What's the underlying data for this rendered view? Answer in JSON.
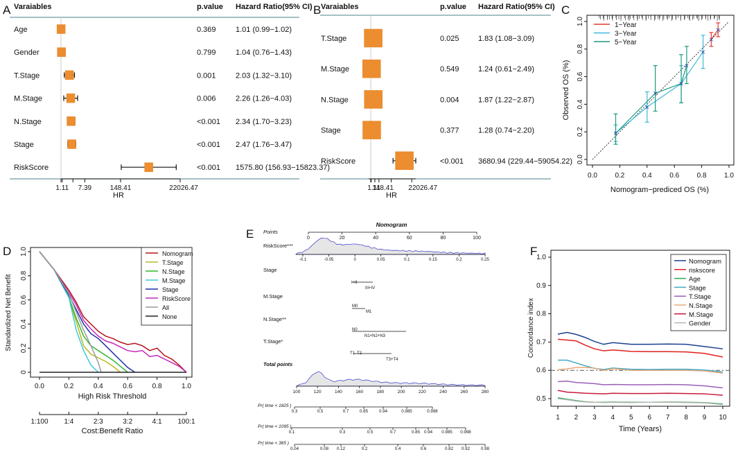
{
  "panels": {
    "A": {
      "letter": "A"
    },
    "B": {
      "letter": "B"
    },
    "C": {
      "letter": "C"
    },
    "D": {
      "letter": "D"
    },
    "E": {
      "letter": "E"
    },
    "F": {
      "letter": "F"
    }
  },
  "chart_data": [
    {
      "id": "A",
      "type": "forest",
      "headers": {
        "variable": "Varaiables",
        "p": "p.value",
        "hr": "Hazard Ratio(95% CI)"
      },
      "xlabel": "HR",
      "scale": "log",
      "xticks": [
        {
          "v": 1,
          "label": ""
        },
        {
          "v": 1.11,
          "label": "1.11"
        },
        {
          "v": 2.72,
          "label": ""
        },
        {
          "v": 7.39,
          "label": "7.39"
        },
        {
          "v": 148.41,
          "label": "148.41"
        },
        {
          "v": 22026.47,
          "label": "22026.47"
        }
      ],
      "rows": [
        {
          "name": "Age",
          "p": "0.369",
          "text": "1.01 (0.99−1.02)",
          "hr": 1.01,
          "lo": 0.99,
          "hi": 1.02
        },
        {
          "name": "Gender",
          "p": "0.799",
          "text": "1.04 (0.76−1.43)",
          "hr": 1.04,
          "lo": 0.76,
          "hi": 1.43
        },
        {
          "name": "T.Stage",
          "p": "0.001",
          "text": "2.03 (1.32−3.10)",
          "hr": 2.03,
          "lo": 1.32,
          "hi": 3.1
        },
        {
          "name": "M.Stage",
          "p": "0.006",
          "text": "2.26 (1.26−4.03)",
          "hr": 2.26,
          "lo": 1.26,
          "hi": 4.03
        },
        {
          "name": "N.Stage",
          "p": "<0.001",
          "text": "2.34 (1.70−3.23)",
          "hr": 2.34,
          "lo": 1.7,
          "hi": 3.23
        },
        {
          "name": "Stage",
          "p": "<0.001",
          "text": "2.47 (1.76−3.47)",
          "hr": 2.47,
          "lo": 1.76,
          "hi": 3.47
        },
        {
          "name": "RiskScore",
          "p": "<0.001",
          "text": "1575.80 (156.93−15823.37)",
          "hr": 1575.8,
          "lo": 156.93,
          "hi": 15823.37
        }
      ]
    },
    {
      "id": "B",
      "type": "forest",
      "headers": {
        "variable": "Varaiables",
        "p": "p.value",
        "hr": "Hazard Ratio(95% CI)"
      },
      "xlabel": "HR",
      "scale": "log",
      "xticks": [
        {
          "v": 1,
          "label": ""
        },
        {
          "v": 1.11,
          "label": "1.11"
        },
        {
          "v": 2.72,
          "label": ""
        },
        {
          "v": 7.39,
          "label": ""
        },
        {
          "v": 148.41,
          "label": "148.41"
        },
        {
          "v": 22026.47,
          "label": "22026.47"
        }
      ],
      "rows": [
        {
          "name": "T.Stage",
          "p": "0.025",
          "text": "1.83 (1.08−3.09)",
          "hr": 1.83,
          "lo": 1.08,
          "hi": 3.09
        },
        {
          "name": "M.Stage",
          "p": "0.549",
          "text": "1.24 (0.61−2.49)",
          "hr": 1.24,
          "lo": 0.61,
          "hi": 2.49
        },
        {
          "name": "N.Stage",
          "p": "0.004",
          "text": "1.87 (1.22−2.87)",
          "hr": 1.87,
          "lo": 1.22,
          "hi": 2.87
        },
        {
          "name": "Stage",
          "p": "0.377",
          "text": "1.28 (0.74−2.20)",
          "hr": 1.28,
          "lo": 0.74,
          "hi": 2.2
        },
        {
          "name": "RiskScore",
          "p": "<0.001",
          "text": "3680.94 (229.44−59054.22)",
          "hr": 3680.94,
          "lo": 229.44,
          "hi": 59054.22
        }
      ]
    },
    {
      "id": "C",
      "type": "line",
      "xlabel": "Nomogram−prediced OS (%)",
      "ylabel": "Observed OS (%)",
      "xlim": [
        0,
        1
      ],
      "ylim": [
        0,
        1
      ],
      "xticks": [
        "0.0",
        "0.2",
        "0.4",
        "0.6",
        "0.8",
        "1.0"
      ],
      "yticks": [
        "0.0",
        "0.2",
        "0.4",
        "0.6",
        "0.8",
        "1.0"
      ],
      "legend": "top-left",
      "series": [
        {
          "name": "1−Year",
          "color": "#e03a2f",
          "x": [
            0.87,
            0.92
          ],
          "y": [
            0.87,
            0.94
          ],
          "lo": [
            0.82,
            0.89
          ],
          "hi": [
            0.92,
            0.99
          ]
        },
        {
          "name": "3−Year",
          "color": "#3fb7d9",
          "x": [
            0.17,
            0.4,
            0.65,
            0.81
          ],
          "y": [
            0.19,
            0.38,
            0.55,
            0.78
          ],
          "lo": [
            0.13,
            0.27,
            0.41,
            0.66
          ],
          "hi": [
            0.25,
            0.49,
            0.68,
            0.9
          ]
        },
        {
          "name": "5−Year",
          "color": "#1a9a7e",
          "x": [
            0.17,
            0.46,
            0.65,
            0.69
          ],
          "y": [
            0.19,
            0.48,
            0.55,
            0.68
          ],
          "lo": [
            0.11,
            0.35,
            0.41,
            0.55
          ],
          "hi": [
            0.33,
            0.68,
            0.76,
            0.82
          ]
        }
      ]
    },
    {
      "id": "D",
      "type": "line",
      "subtype": "decision-curve",
      "xlabel": "High Risk Threshold",
      "ylabel": "Standardized Net Benefit",
      "x2label": "Cost:Benefit Ratio",
      "xlim": [
        0,
        1
      ],
      "ylim": [
        0,
        1
      ],
      "xticks": [
        "0.0",
        "0.2",
        "0.4",
        "0.6",
        "0.8",
        "1.0"
      ],
      "yticks": [
        "0",
        "0.2",
        "0.4",
        "0.6",
        "0.8",
        "1.0"
      ],
      "x2ticks": [
        "1:100",
        "1:4",
        "2:3",
        "3:2",
        "4:1",
        "100:1"
      ],
      "legend": "top-right",
      "series": [
        {
          "name": "Nomogram",
          "color": "#b5121b",
          "x": [
            0,
            0.1,
            0.2,
            0.25,
            0.3,
            0.35,
            0.4,
            0.45,
            0.5,
            0.55,
            0.6,
            0.65,
            0.7,
            0.75,
            0.8,
            0.85,
            0.9,
            0.95,
            1.0
          ],
          "y": [
            1.0,
            0.85,
            0.68,
            0.58,
            0.46,
            0.4,
            0.34,
            0.3,
            0.28,
            0.25,
            0.23,
            0.24,
            0.22,
            0.18,
            0.2,
            0.14,
            0.11,
            0.06,
            0.0
          ]
        },
        {
          "name": "T.Stage",
          "color": "#b7b81d",
          "x": [
            0,
            0.1,
            0.2,
            0.25,
            0.3,
            0.35,
            0.4,
            0.45,
            0.5,
            0.55
          ],
          "y": [
            1.0,
            0.85,
            0.62,
            0.42,
            0.22,
            0.15,
            0.12,
            0.09,
            0.05,
            0.0
          ]
        },
        {
          "name": "N.Stage",
          "color": "#2fb52f",
          "x": [
            0,
            0.1,
            0.2,
            0.25,
            0.3,
            0.35,
            0.4,
            0.45,
            0.5,
            0.55,
            0.6
          ],
          "y": [
            1.0,
            0.85,
            0.62,
            0.45,
            0.3,
            0.22,
            0.18,
            0.14,
            0.1,
            0.05,
            0.0
          ]
        },
        {
          "name": "M.Stage",
          "color": "#3fc8d8",
          "x": [
            0,
            0.1,
            0.2,
            0.25,
            0.3,
            0.35,
            0.4
          ],
          "y": [
            1.0,
            0.85,
            0.62,
            0.35,
            0.18,
            0.06,
            0.0
          ]
        },
        {
          "name": "Stage",
          "color": "#1a2fa6",
          "x": [
            0,
            0.1,
            0.2,
            0.25,
            0.3,
            0.35,
            0.4,
            0.45,
            0.5,
            0.55,
            0.6,
            0.65
          ],
          "y": [
            1.0,
            0.85,
            0.64,
            0.52,
            0.4,
            0.32,
            0.28,
            0.22,
            0.16,
            0.1,
            0.04,
            0.0
          ]
        },
        {
          "name": "RiskScore",
          "color": "#c22ab8",
          "x": [
            0,
            0.1,
            0.2,
            0.25,
            0.3,
            0.35,
            0.4,
            0.45,
            0.5,
            0.55,
            0.6,
            0.65,
            0.7,
            0.75,
            0.8,
            0.85,
            0.9,
            0.95,
            1.0
          ],
          "y": [
            1.0,
            0.85,
            0.66,
            0.56,
            0.43,
            0.36,
            0.3,
            0.26,
            0.24,
            0.21,
            0.18,
            0.17,
            0.18,
            0.13,
            0.14,
            0.11,
            0.08,
            0.05,
            0.0
          ]
        },
        {
          "name": "All",
          "color": "#9a9a9a",
          "x": [
            0,
            0.1,
            0.2,
            0.3,
            0.35,
            0.4,
            0.42
          ],
          "y": [
            1.0,
            0.85,
            0.65,
            0.35,
            0.22,
            0.08,
            0.0
          ]
        },
        {
          "name": "None",
          "color": "#222222",
          "x": [
            0,
            1
          ],
          "y": [
            0,
            0
          ]
        }
      ]
    },
    {
      "id": "E",
      "type": "nomogram",
      "title": "Nomogram",
      "points_label": "Points",
      "points_ticks": [
        "0",
        "20",
        "40",
        "60",
        "80",
        "100"
      ],
      "rows": [
        {
          "name": "RiskScore***",
          "ticks": [
            "-0.1",
            "-0.05",
            "0",
            "0.05",
            "0.1",
            "0.15",
            "0.2",
            "0.25"
          ]
        },
        {
          "name": "Stage",
          "labels": [
            "I+II",
            "III+IV"
          ]
        },
        {
          "name": "M.Stage",
          "labels": [
            "M0",
            "M1"
          ]
        },
        {
          "name": "N.Stage**",
          "labels": [
            "N0",
            "N1+N2+N3"
          ]
        },
        {
          "name": "T.Stage*",
          "labels": [
            "T1",
            "T2",
            "T3+T4"
          ]
        }
      ],
      "total_label": "Total points",
      "total_ticks": [
        "100",
        "120",
        "140",
        "160",
        "180",
        "200",
        "220",
        "240",
        "260",
        "280"
      ],
      "prob_rows": [
        {
          "name": "Pr( time < 1825 )",
          "ticks": [
            "0.3",
            "0.5",
            "0.7",
            "0.85",
            "0.94",
            "0.985",
            "0.998"
          ]
        },
        {
          "name": "Pr( time < 1095 )",
          "ticks": [
            "0.1",
            "0.3",
            "0.5",
            "0.7",
            "0.85",
            "0.94",
            "0.985",
            "0.998"
          ]
        },
        {
          "name": "Pr( time < 365 )",
          "ticks": [
            "0.04",
            "0.08",
            "0.12",
            "0.2",
            "0.4",
            "0.6",
            "0.82",
            "0.92",
            "0.98"
          ]
        }
      ]
    },
    {
      "id": "F",
      "type": "line",
      "xlabel": "Time (Years)",
      "ylabel": "Concordance index",
      "xlim": [
        1,
        10
      ],
      "ylim": [
        0.45,
        1.0
      ],
      "xticks": [
        "1",
        "2",
        "3",
        "4",
        "5",
        "6",
        "7",
        "8",
        "9",
        "10"
      ],
      "yticks": [
        "0.5",
        "0.6",
        "0.7",
        "0.8",
        "0.9",
        "1.0"
      ],
      "reference": 0.6,
      "legend": "top-right",
      "x": [
        1,
        1.5,
        2,
        2.5,
        3,
        3.5,
        4,
        5,
        6,
        7,
        8,
        9,
        10
      ],
      "series": [
        {
          "name": "Nomogram",
          "color": "#1a3f8f",
          "values": [
            0.728,
            0.734,
            0.727,
            0.716,
            0.702,
            0.692,
            0.698,
            0.692,
            0.692,
            0.693,
            0.692,
            0.684,
            0.676
          ]
        },
        {
          "name": "riskscore",
          "color": "#e01f1f",
          "values": [
            0.71,
            0.707,
            0.704,
            0.689,
            0.676,
            0.669,
            0.672,
            0.667,
            0.666,
            0.666,
            0.665,
            0.66,
            0.647
          ]
        },
        {
          "name": "Age",
          "color": "#2fa84f",
          "values": [
            0.503,
            0.498,
            0.493,
            0.489,
            0.487,
            0.487,
            0.488,
            0.487,
            0.487,
            0.488,
            0.487,
            0.486,
            0.481
          ]
        },
        {
          "name": "Stage",
          "color": "#3fa8c8",
          "values": [
            0.636,
            0.636,
            0.626,
            0.616,
            0.607,
            0.603,
            0.608,
            0.604,
            0.603,
            0.604,
            0.604,
            0.601,
            0.594
          ]
        },
        {
          "name": "T.Stage",
          "color": "#9a5fb8",
          "values": [
            0.56,
            0.562,
            0.557,
            0.555,
            0.553,
            0.549,
            0.55,
            0.549,
            0.549,
            0.55,
            0.549,
            0.545,
            0.538
          ]
        },
        {
          "name": "N.Stage",
          "color": "#e8a878",
          "values": [
            0.602,
            0.605,
            0.61,
            0.61,
            0.608,
            0.6,
            0.606,
            0.6,
            0.6,
            0.6,
            0.6,
            0.598,
            0.59
          ]
        },
        {
          "name": "M.Stage",
          "color": "#c8193c",
          "values": [
            0.529,
            0.523,
            0.521,
            0.519,
            0.518,
            0.517,
            0.519,
            0.518,
            0.518,
            0.519,
            0.518,
            0.517,
            0.512
          ]
        },
        {
          "name": "Gender",
          "color": "#b8b8b8",
          "values": [
            0.5,
            0.496,
            0.491,
            0.488,
            0.487,
            0.486,
            0.487,
            0.486,
            0.487,
            0.487,
            0.486,
            0.485,
            0.479
          ]
        }
      ]
    }
  ]
}
